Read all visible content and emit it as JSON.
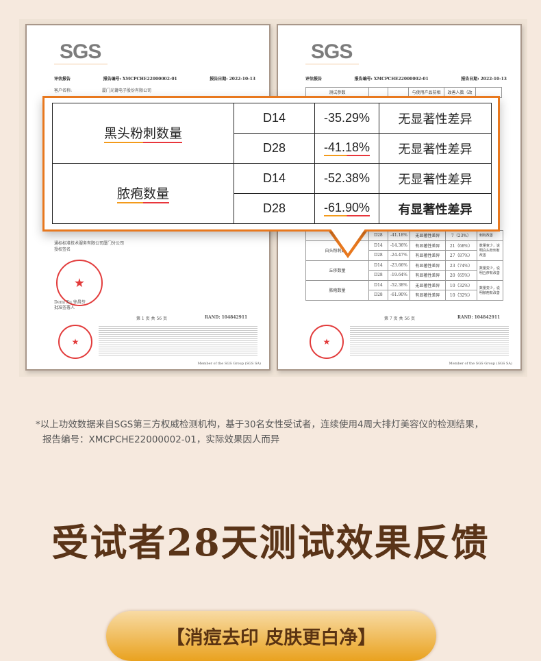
{
  "left_doc": {
    "logo": "SGS",
    "doc_type": "评估报告",
    "report_no": "报告编号: XMCPCHE22000002-01",
    "report_date": "报告日期: 2022-10-13",
    "client_label": "客户名称:",
    "client_name": "厦门光莆电子股份有限公司",
    "org": "通标标准技术服务有限公司厦门分公司",
    "auth_sign": "授权签名",
    "signer": "Demi Xu 徐昌芬",
    "signer_role": "批准签署人",
    "page": "第 1 页 共 56 页",
    "rand": "RAND: 104842911",
    "member": "Member of the SGS Group (SGS SA)"
  },
  "right_doc": {
    "logo": "SGS",
    "doc_type": "评估报告",
    "report_no": "报告编号: XMCPCHE22000002-01",
    "report_date": "报告日期: 2022-10-13",
    "header_cells": [
      "测试参数",
      "与使用产品前相",
      "改善人数（改"
    ],
    "rows": [
      {
        "name": "",
        "day": "D28",
        "pct": "-41.18%",
        "sig": "无显著性差异",
        "count": "7（23%）",
        "note": "刺有改善"
      },
      {
        "name": "白头粉刺数量",
        "day": "D14",
        "pct": "-14.36%",
        "sig": "有显著性差异",
        "count": "21（68%）",
        "note": "数量变少，说明白头粉刺有改善"
      },
      {
        "name": "",
        "day": "D28",
        "pct": "-24.47%",
        "sig": "有显著性差异",
        "count": "27（87%）",
        "note": ""
      },
      {
        "name": "丘疹数量",
        "day": "D14",
        "pct": "-23.66%",
        "sig": "有显著性差异",
        "count": "23（74%）",
        "note": "数量变少，说明丘疹有改善"
      },
      {
        "name": "",
        "day": "D28",
        "pct": "-19.64%",
        "sig": "有显著性差异",
        "count": "20（65%）",
        "note": ""
      },
      {
        "name": "脓疱数量",
        "day": "D14",
        "pct": "-52.38%",
        "sig": "无显著性差异",
        "count": "10（32%）",
        "note": "数量变少，说明脓疱有改善"
      },
      {
        "name": "",
        "day": "D28",
        "pct": "-61.90%",
        "sig": "有显著性差异",
        "count": "10（32%）",
        "note": ""
      }
    ],
    "page": "第 7 页 共 56 页",
    "rand": "RAND: 104842911",
    "member": "Member of the SGS Group (SGS SA)"
  },
  "highlight": {
    "groups": [
      {
        "name": "黑头粉刺数量",
        "rows": [
          {
            "day": "D14",
            "pct": "-35.29%",
            "sig": "无显著性差异"
          },
          {
            "day": "D28",
            "pct": "-41.18%",
            "sig": "无显著性差异"
          }
        ]
      },
      {
        "name": "脓疱数量",
        "rows": [
          {
            "day": "D14",
            "pct": "-52.38%",
            "sig": "无显著性差异"
          },
          {
            "day": "D28",
            "pct": "-61.90%",
            "sig": "有显著性差异"
          }
        ]
      }
    ],
    "accent": "#e8781e"
  },
  "footnote": [
    "*以上功效数据来自SGS第三方权威检测机构，基于30名女性受试者，连续使用4周大排灯美容仪的检测结果，",
    "报告编号：XMCPCHE22000002-01，实际效果因人而异"
  ],
  "headline": "受试者28天测试效果反馈",
  "pill": "【消痘去印 皮肤更白净】"
}
